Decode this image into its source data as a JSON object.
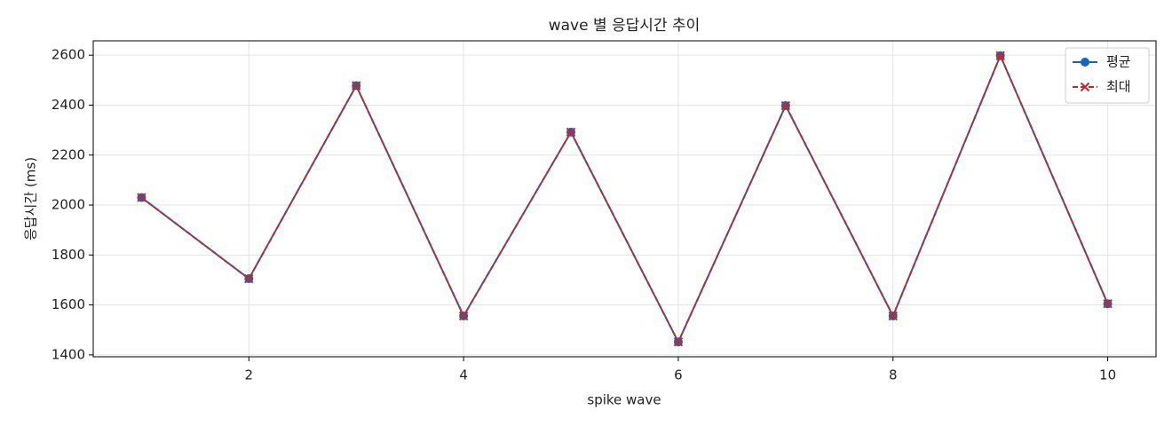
{
  "chart_data": {
    "type": "line",
    "title": "wave 별 응답시간 추이",
    "x_label": "spike wave",
    "y_label": "응답시간 (ms)",
    "x": [
      1,
      2,
      3,
      4,
      5,
      6,
      7,
      8,
      9,
      10
    ],
    "series": [
      {
        "name": "평균",
        "color": "#1565c0",
        "marker": "o",
        "dash": "solid",
        "values": [
          2030,
          1705,
          2478,
          1556,
          2292,
          1452,
          2398,
          1556,
          2598,
          1605
        ]
      },
      {
        "name": "최대",
        "color": "#c62828",
        "marker": "x",
        "dash": "dashed",
        "values": [
          2030,
          1705,
          2478,
          1556,
          2292,
          1452,
          2398,
          1556,
          2598,
          1605
        ]
      }
    ],
    "xlim": [
      0.55,
      10.45
    ],
    "ylim": [
      1392.5,
      2657.5
    ],
    "xticks": [
      2,
      4,
      6,
      8,
      10
    ],
    "yticks": [
      1400,
      1600,
      1800,
      2000,
      2200,
      2400,
      2600
    ],
    "grid": true,
    "legend": "upper right"
  }
}
